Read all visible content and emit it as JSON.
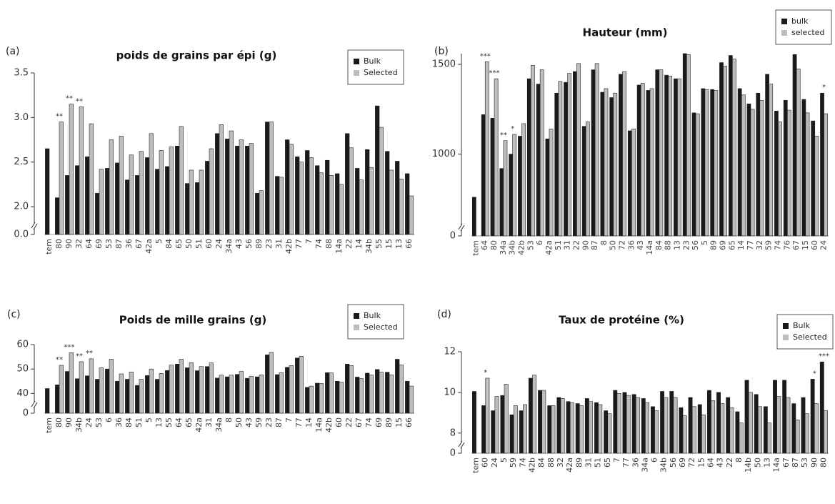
{
  "chart_data": [
    {
      "type": "bar",
      "label": "(a)",
      "title": "poids de grains par épi (g)",
      "legend": "upper right",
      "ylim": [
        0,
        3.5
      ],
      "y_break": [
        0,
        1.8
      ],
      "yticks": [
        {
          "value": 0,
          "label": "0.0"
        },
        {
          "value": 2,
          "label": "2.0"
        },
        {
          "value": 2.5,
          "label": "2.5"
        },
        {
          "value": 3,
          "label": "3.0"
        },
        {
          "value": 3.5,
          "label": "3.5"
        }
      ],
      "categories": [
        "tem",
        "80",
        "90",
        "32",
        "64",
        "69",
        "53",
        "87",
        "36",
        "67",
        "42a",
        "5",
        "84",
        "65",
        "50",
        "51",
        "60",
        "24",
        "34a",
        "43",
        "56",
        "89",
        "23",
        "31",
        "42b",
        "77",
        "7",
        "74",
        "88",
        "14a",
        "22",
        "14",
        "34b",
        "55",
        "15",
        "13",
        "66"
      ],
      "series": [
        {
          "name": "Bulk",
          "color": "#1a1a1a",
          "values": [
            2.65,
            2.1,
            2.35,
            2.46,
            2.56,
            2.15,
            2.43,
            2.49,
            2.3,
            2.35,
            2.55,
            2.42,
            2.45,
            2.68,
            2.26,
            2.27,
            2.51,
            2.82,
            2.76,
            2.68,
            2.68,
            2.15,
            2.95,
            2.34,
            2.75,
            2.56,
            2.63,
            2.46,
            2.52,
            2.37,
            2.82,
            2.43,
            2.64,
            3.13,
            2.62,
            2.51,
            2.37
          ]
        },
        {
          "name": "Selected",
          "color": "#bdbdbd",
          "values": [
            null,
            2.95,
            3.15,
            3.12,
            2.93,
            2.42,
            2.75,
            2.79,
            2.58,
            2.62,
            2.82,
            2.63,
            2.67,
            2.9,
            2.41,
            2.41,
            2.65,
            2.92,
            2.85,
            2.75,
            2.71,
            2.18,
            2.95,
            2.33,
            2.7,
            2.5,
            2.55,
            2.38,
            2.35,
            2.25,
            2.66,
            2.3,
            2.44,
            2.89,
            2.41,
            2.31,
            2.12
          ]
        }
      ],
      "significance": [
        null,
        "**",
        "**",
        "**",
        null,
        null,
        null,
        null,
        null,
        null,
        null,
        null,
        null,
        null,
        null,
        null,
        null,
        null,
        null,
        null,
        null,
        null,
        null,
        null,
        null,
        null,
        null,
        null,
        null,
        null,
        null,
        null,
        null,
        null,
        null,
        null,
        null
      ]
    },
    {
      "type": "bar",
      "label": "(b)",
      "title": "Hauteur (mm)",
      "legend": "upper right",
      "ylim": [
        0,
        1560
      ],
      "y_break": [
        0,
        600
      ],
      "yticks": [
        0,
        1000,
        1500
      ],
      "categories": [
        "tem",
        "64",
        "80",
        "34a",
        "34b",
        "42b",
        "53",
        "6",
        "42a",
        "51",
        "31",
        "22",
        "90",
        "87",
        "8",
        "50",
        "72",
        "36",
        "43",
        "14a",
        "84",
        "88",
        "13",
        "23",
        "56",
        "5",
        "89",
        "69",
        "65",
        "14",
        "77",
        "32",
        "59",
        "74",
        "76",
        "67",
        "15",
        "60",
        "24"
      ],
      "series": [
        {
          "name": "bulk",
          "color": "#1a1a1a",
          "values": [
            760,
            1220,
            1200,
            920,
            1000,
            1100,
            1420,
            1390,
            1085,
            1340,
            1400,
            1460,
            1155,
            1470,
            1345,
            1315,
            1445,
            1130,
            1385,
            1355,
            1470,
            1440,
            1420,
            1560,
            1230,
            1365,
            1360,
            1510,
            1550,
            1365,
            1280,
            1340,
            1445,
            1240,
            1300,
            1555,
            1305,
            1185,
            1340
          ]
        },
        {
          "name": "selected",
          "color": "#bdbdbd",
          "values": [
            null,
            1515,
            1420,
            1075,
            1110,
            1170,
            1495,
            1470,
            1140,
            1405,
            1450,
            1505,
            1180,
            1505,
            1365,
            1340,
            1460,
            1140,
            1395,
            1365,
            1470,
            1435,
            1420,
            1555,
            1225,
            1360,
            1355,
            1490,
            1530,
            1330,
            1250,
            1300,
            1390,
            1180,
            1245,
            1475,
            1230,
            1100,
            1225
          ]
        }
      ],
      "significance": [
        null,
        "***",
        "***",
        "**",
        "*",
        null,
        null,
        null,
        null,
        null,
        null,
        null,
        null,
        null,
        null,
        null,
        null,
        null,
        null,
        null,
        null,
        null,
        null,
        null,
        null,
        null,
        null,
        null,
        null,
        null,
        null,
        null,
        null,
        null,
        null,
        null,
        null,
        null,
        "*"
      ]
    },
    {
      "type": "bar",
      "label": "(c)",
      "title": "Poids de mille grains (g)",
      "legend": "upper right",
      "ylim": [
        0,
        60
      ],
      "y_break": [
        0,
        36
      ],
      "yticks": [
        0,
        40,
        50,
        60
      ],
      "categories": [
        "tem",
        "80",
        "90",
        "34b",
        "24",
        "53",
        "6",
        "36",
        "84",
        "51",
        "5",
        "13",
        "55",
        "64",
        "65",
        "42a",
        "31",
        "34a",
        "8",
        "50",
        "43",
        "59",
        "23",
        "87",
        "7",
        "77",
        "14",
        "14a",
        "42b",
        "60",
        "22",
        "67",
        "74",
        "69",
        "89",
        "15",
        "66"
      ],
      "series": [
        {
          "name": "Bulk",
          "color": "#1a1a1a",
          "values": [
            42,
            43.5,
            49,
            46,
            47.2,
            45.8,
            50,
            45,
            45.8,
            43.3,
            47.3,
            45.8,
            49.4,
            52,
            50.5,
            49.3,
            51,
            46.3,
            46.8,
            47.8,
            46.2,
            46.8,
            55.8,
            47.7,
            50.7,
            54.5,
            42.5,
            44.2,
            48.5,
            45,
            52,
            46.7,
            48.3,
            49.8,
            48.7,
            54,
            45
          ]
        },
        {
          "name": "Selected",
          "color": "#bdbdbd",
          "values": [
            null,
            51.5,
            56.7,
            53,
            54.2,
            50.5,
            54,
            48,
            48.8,
            45.8,
            50,
            48.2,
            51.6,
            54,
            52.6,
            51,
            52.5,
            47.5,
            47.5,
            49,
            47,
            47.6,
            56.8,
            48.5,
            51.4,
            55.2,
            43,
            44.1,
            48.4,
            44.6,
            51.4,
            46.1,
            47.5,
            48.7,
            47.6,
            51.7,
            43
          ]
        }
      ],
      "significance": [
        null,
        "**",
        "***",
        "**",
        "**",
        null,
        null,
        null,
        null,
        null,
        null,
        null,
        null,
        null,
        null,
        null,
        null,
        null,
        null,
        null,
        null,
        null,
        null,
        null,
        null,
        null,
        null,
        null,
        null,
        null,
        null,
        null,
        null,
        null,
        null,
        null,
        null
      ]
    },
    {
      "type": "bar",
      "label": "(d)",
      "title": "Taux de protéine (%)",
      "legend": "upper right",
      "ylim": [
        0,
        12
      ],
      "y_break": [
        0,
        7.5
      ],
      "yticks": [
        0,
        8,
        10,
        12
      ],
      "categories": [
        "tem",
        "60",
        "24",
        "5",
        "59",
        "74",
        "42b",
        "84",
        "88",
        "32",
        "42a",
        "89",
        "31",
        "51",
        "65",
        "7",
        "77",
        "36",
        "34a",
        "6",
        "34b",
        "56",
        "69",
        "72",
        "15",
        "64",
        "43",
        "22",
        "8",
        "14b",
        "50",
        "13",
        "14a",
        "67",
        "87",
        "53",
        "90",
        "80"
      ],
      "series": [
        {
          "name": "Bulk",
          "color": "#1a1a1a",
          "values": [
            10.05,
            9.35,
            9.1,
            9.85,
            8.9,
            9.1,
            10.7,
            10.1,
            9.35,
            9.75,
            9.55,
            9.45,
            9.7,
            9.5,
            9.1,
            10.1,
            10,
            9.9,
            9.7,
            9.3,
            10.05,
            10.05,
            9.25,
            9.75,
            9.4,
            10.1,
            10,
            9.75,
            9.05,
            10.6,
            9.9,
            9.3,
            10.6,
            10.6,
            9.45,
            9.75,
            10.65,
            11.5
          ]
        },
        {
          "name": "Selected",
          "color": "#bdbdbd",
          "values": [
            null,
            10.7,
            9.8,
            10.4,
            9.35,
            9.4,
            10.85,
            10.1,
            9.35,
            9.7,
            9.5,
            9.35,
            9.55,
            9.4,
            8.95,
            9.95,
            9.85,
            9.75,
            9.5,
            9.1,
            9.75,
            9.75,
            8.85,
            9.3,
            8.9,
            9.6,
            9.45,
            9.25,
            8.5,
            10,
            9.3,
            8.5,
            9.8,
            9.75,
            8.65,
            8.95,
            9.45,
            9.1
          ]
        }
      ],
      "significance": [
        null,
        "*",
        null,
        null,
        null,
        null,
        null,
        null,
        null,
        null,
        null,
        null,
        null,
        null,
        null,
        null,
        null,
        null,
        null,
        null,
        null,
        null,
        null,
        null,
        null,
        null,
        null,
        null,
        null,
        null,
        null,
        null,
        null,
        null,
        null,
        null,
        "*",
        "***"
      ]
    }
  ]
}
